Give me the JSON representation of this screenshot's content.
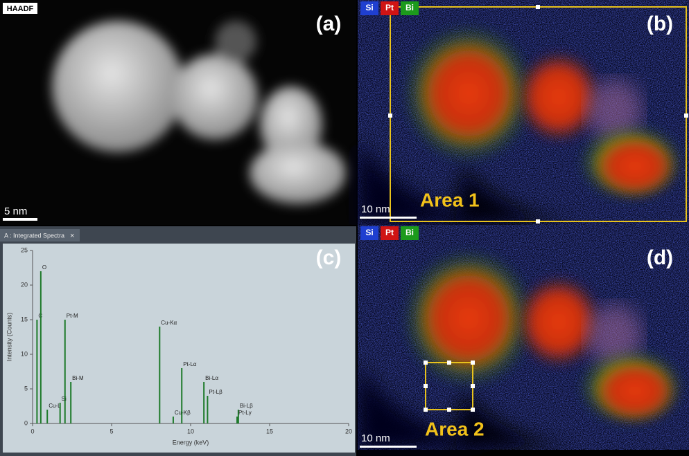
{
  "panel_a": {
    "label": "(a)",
    "badge": "HAADF",
    "scale_bar": "5 nm"
  },
  "panel_b": {
    "label": "(b)",
    "elements": [
      {
        "name": "Si",
        "color": "#1f3fd0"
      },
      {
        "name": "Pt",
        "color": "#d01414"
      },
      {
        "name": "Bi",
        "color": "#1c9a1c"
      }
    ],
    "scale_bar": "10 nm",
    "area": "Area 1"
  },
  "panel_c": {
    "label": "(c)",
    "tab": "A : Integrated Spectra",
    "close": "×",
    "x_label": "Energy (keV)",
    "y_label": "Intensity (Counts)",
    "xlim": [
      0,
      20
    ],
    "ylim": [
      0,
      25
    ],
    "xticks": [
      0,
      5,
      10,
      15,
      20
    ],
    "yticks": [
      0,
      5,
      10,
      15,
      20,
      25
    ],
    "peaks": [
      {
        "label": "C",
        "energy": 0.28,
        "counts": 15
      },
      {
        "label": "O",
        "energy": 0.52,
        "counts": 22
      },
      {
        "label": "Cu-L",
        "energy": 0.93,
        "counts": 2
      },
      {
        "label": "Si",
        "energy": 1.74,
        "counts": 3
      },
      {
        "label": "Pt-M",
        "energy": 2.05,
        "counts": 15
      },
      {
        "label": "Bi-M",
        "energy": 2.42,
        "counts": 6
      },
      {
        "label": "Cu-Kα",
        "energy": 8.04,
        "counts": 14
      },
      {
        "label": "Cu-Kβ",
        "energy": 8.9,
        "counts": 1
      },
      {
        "label": "Pt-Lα",
        "energy": 9.44,
        "counts": 8
      },
      {
        "label": "Bi-Lα",
        "energy": 10.84,
        "counts": 6
      },
      {
        "label": "Pt-Lβ",
        "energy": 11.07,
        "counts": 4
      },
      {
        "label": "Bi-Lβ",
        "energy": 13.02,
        "counts": 2
      },
      {
        "label": "Pt-Lγ",
        "energy": 12.94,
        "counts": 1
      }
    ]
  },
  "panel_d": {
    "label": "(d)",
    "elements": [
      {
        "name": "Si",
        "color": "#1f3fd0"
      },
      {
        "name": "Pt",
        "color": "#d01414"
      },
      {
        "name": "Bi",
        "color": "#1c9a1c"
      }
    ],
    "scale_bar": "10 nm",
    "area": "Area 2"
  }
}
